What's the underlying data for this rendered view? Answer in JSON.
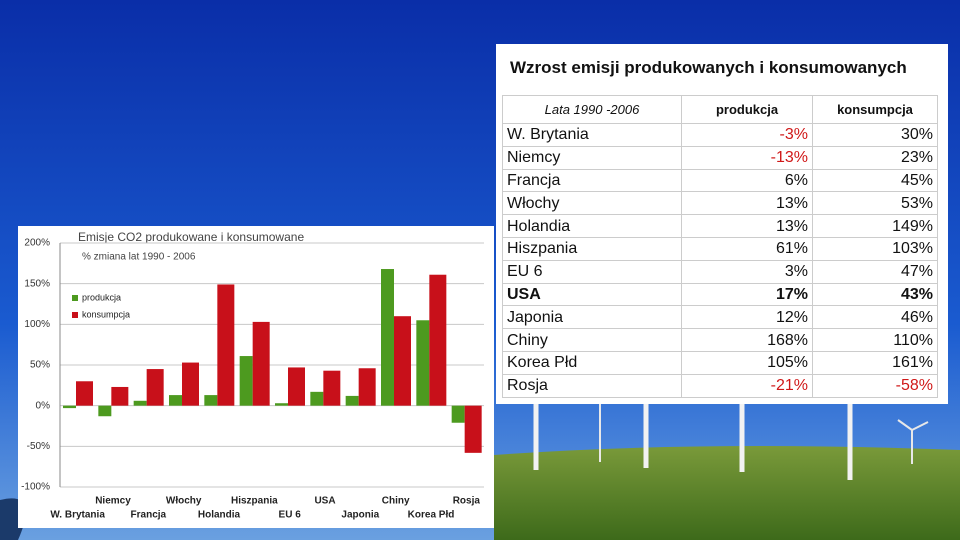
{
  "chart_data": {
    "type": "bar",
    "title": "Emisje CO2 produkowane i konsumowane",
    "subtitle": "% zmiana lat 1990 - 2006",
    "categories": [
      "W. Brytania",
      "Niemcy",
      "Francja",
      "Włochy",
      "Holandia",
      "Hiszpania",
      "EU 6",
      "USA",
      "Japonia",
      "Chiny",
      "Korea Płd",
      "Rosja"
    ],
    "series": [
      {
        "name": "produkcja",
        "color": "#4d9a1f",
        "values": [
          -3,
          -13,
          6,
          13,
          13,
          61,
          3,
          17,
          12,
          168,
          105,
          -21
        ]
      },
      {
        "name": "konsumpcja",
        "color": "#c8101a",
        "values": [
          30,
          23,
          45,
          53,
          149,
          103,
          47,
          43,
          46,
          110,
          161,
          -58
        ]
      }
    ],
    "ylim": [
      -100,
      200
    ],
    "yticks": [
      {
        "value": -100,
        "label": "-100%"
      },
      {
        "value": -50,
        "label": "-50%"
      },
      {
        "value": 0,
        "label": "0%"
      },
      {
        "value": 50,
        "label": "50%"
      },
      {
        "value": 100,
        "label": "100%"
      },
      {
        "value": 150,
        "label": "150%"
      },
      {
        "value": 200,
        "label": "200%"
      }
    ],
    "grid": true
  },
  "table": {
    "title": "Wzrost emisji produkowanych i konsumowanych",
    "header": [
      "Lata 1990 -2006",
      "produkcja",
      "konsumpcja"
    ],
    "rows": [
      [
        "W. Brytania",
        "-3%",
        "30%"
      ],
      [
        "Niemcy",
        "-13%",
        "23%"
      ],
      [
        "Francja",
        "6%",
        "45%"
      ],
      [
        "Włochy",
        "13%",
        "53%"
      ],
      [
        "Holandia",
        "13%",
        "149%"
      ],
      [
        "Hiszpania",
        "61%",
        "103%"
      ],
      [
        "EU 6",
        "3%",
        "47%"
      ],
      [
        "USA",
        "17%",
        "43%"
      ],
      [
        "Japonia",
        "12%",
        "46%"
      ],
      [
        "Chiny",
        "168%",
        "110%"
      ],
      [
        "Korea Płd",
        "105%",
        "161%"
      ],
      [
        "Rosja",
        "-21%",
        "-58%"
      ]
    ]
  }
}
